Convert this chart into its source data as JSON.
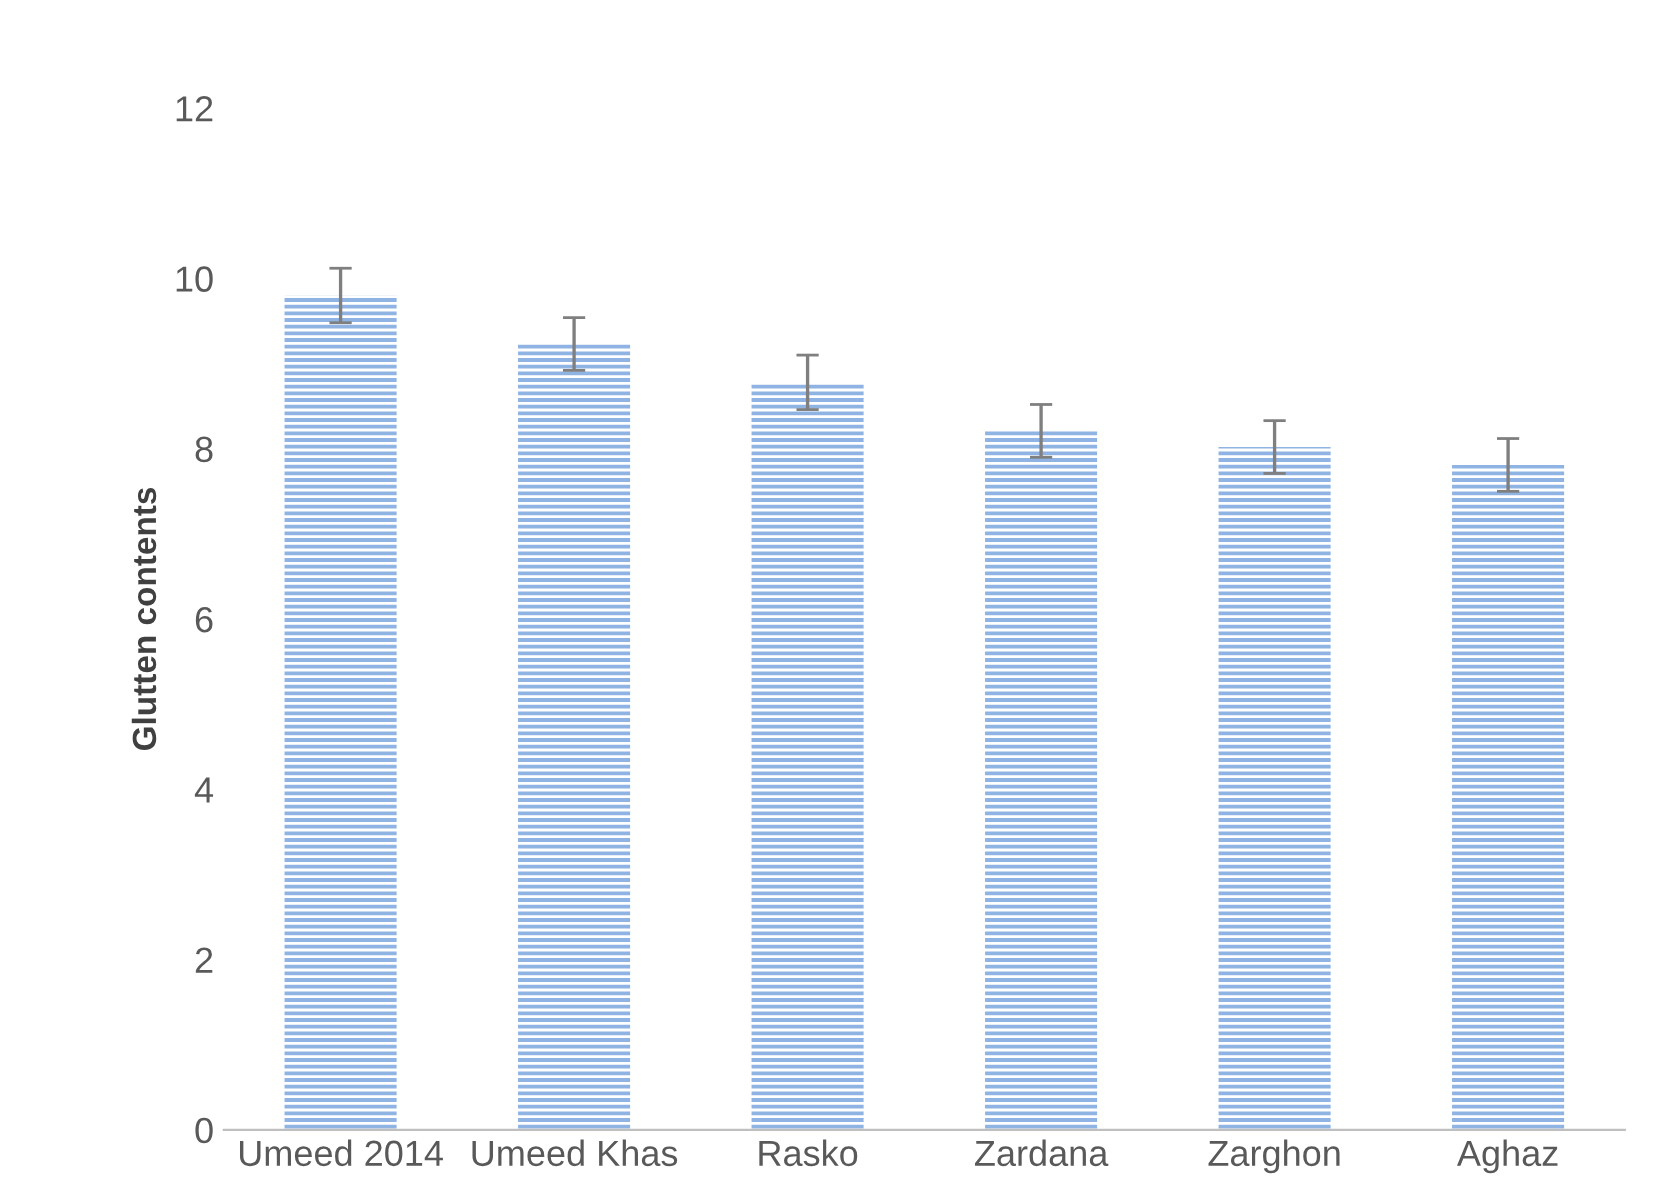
{
  "chart_data": {
    "type": "bar",
    "ylabel": "Glutten contents",
    "categories": [
      "Umeed 2014",
      "Umeed Khas",
      "Rasko",
      "Zardana",
      "Zarghon",
      "Aghaz"
    ],
    "values": [
      9.8,
      9.23,
      8.78,
      8.21,
      8.02,
      7.81
    ],
    "errors": [
      0.32,
      0.31,
      0.32,
      0.31,
      0.31,
      0.31
    ],
    "color": "#8fb4e3",
    "ylim": [
      0,
      12
    ],
    "yticks": [
      0,
      2,
      4,
      6,
      8,
      10,
      12
    ],
    "grid": false,
    "legend": false
  }
}
